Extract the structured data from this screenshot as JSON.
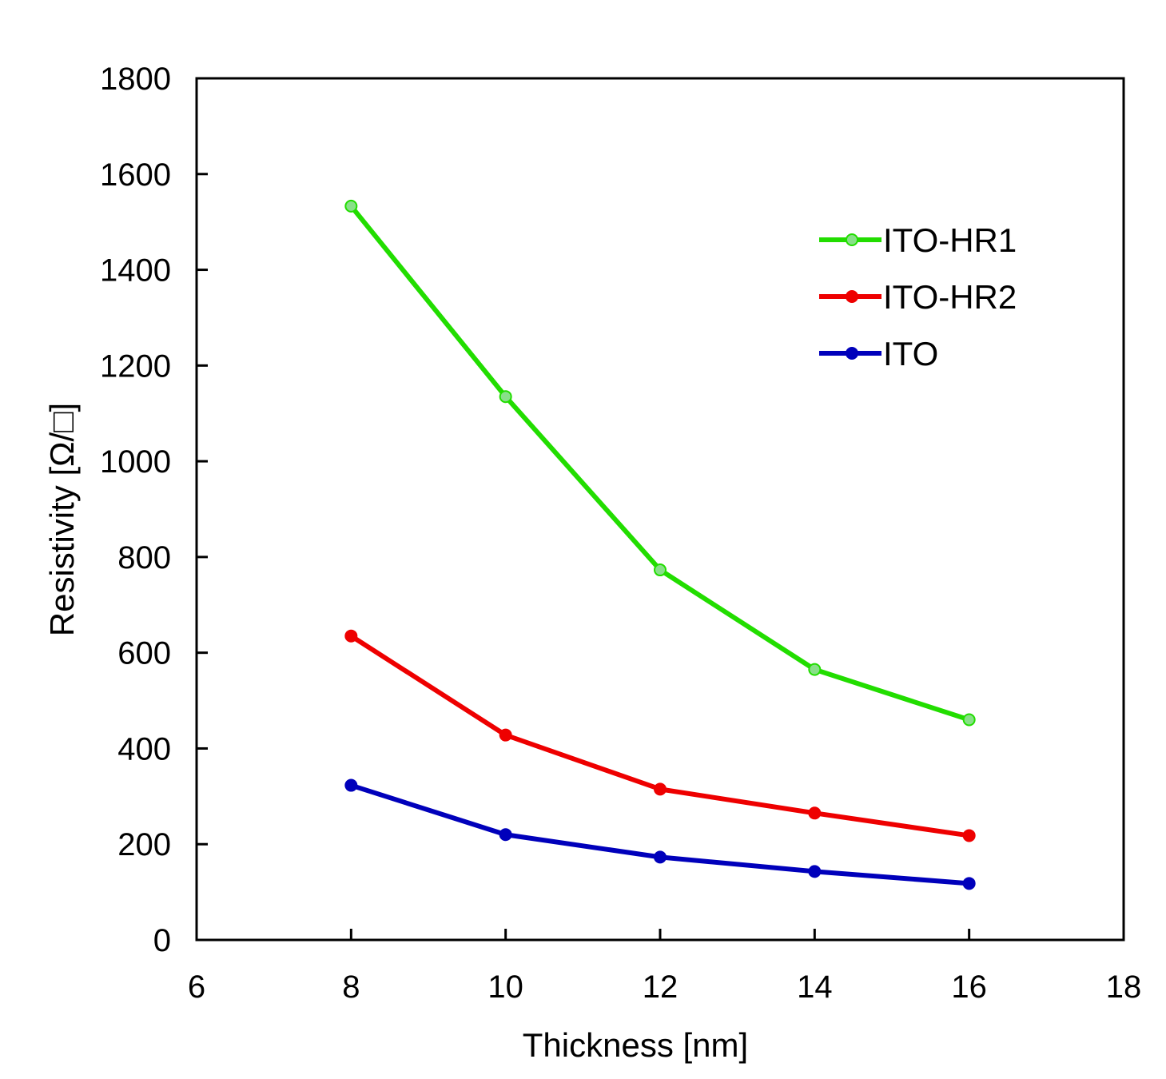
{
  "chart_data": {
    "type": "line",
    "title": "",
    "xlabel": "Thickness [nm]",
    "ylabel": "Resistivity [Ω/□]",
    "xlim": [
      6,
      18
    ],
    "ylim": [
      0,
      1800
    ],
    "xticks": [
      6,
      8,
      10,
      12,
      14,
      16,
      18
    ],
    "yticks": [
      0,
      200,
      400,
      600,
      800,
      1000,
      1200,
      1400,
      1600,
      1800
    ],
    "grid": false,
    "legend_position": "top-right",
    "x": [
      8,
      10,
      12,
      14,
      16
    ],
    "series": [
      {
        "name": "ITO-HR1",
        "color": "#22dd00",
        "marker_fill": "#88e088",
        "values": [
          1533,
          1135,
          773,
          565,
          460
        ]
      },
      {
        "name": "ITO-HR2",
        "color": "#ee0000",
        "marker_fill": "#ee0000",
        "values": [
          635,
          428,
          315,
          265,
          218
        ]
      },
      {
        "name": "ITO",
        "color": "#0000bb",
        "marker_fill": "#0000bb",
        "values": [
          323,
          220,
          173,
          143,
          118
        ]
      }
    ]
  }
}
